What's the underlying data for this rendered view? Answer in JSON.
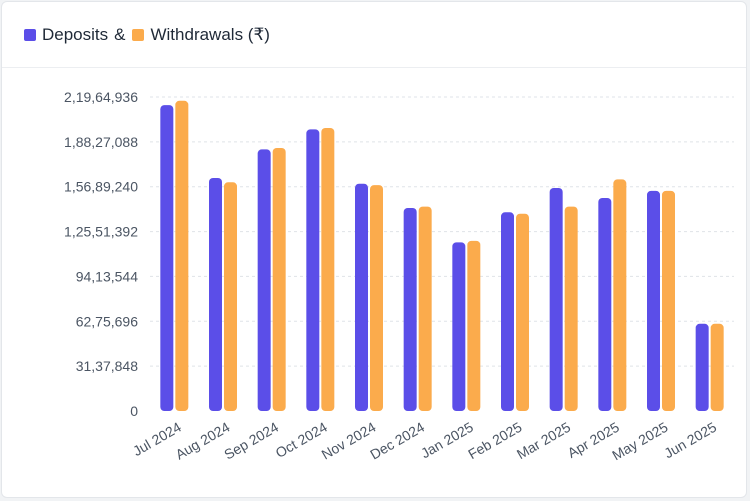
{
  "header": {
    "legend": [
      {
        "label": "Deposits",
        "color": "#5b4ee8"
      },
      {
        "label": "Withdrawals (₹)",
        "color": "#fbab4c"
      }
    ],
    "separator": "&"
  },
  "chart_data": {
    "type": "bar",
    "title": "",
    "xlabel": "",
    "ylabel": "",
    "categories": [
      "Jul 2024",
      "Aug 2024",
      "Sep 2024",
      "Oct 2024",
      "Nov 2024",
      "Dec 2024",
      "Jan 2025",
      "Feb 2025",
      "Mar 2025",
      "Apr 2025",
      "May 2025",
      "Jun 2025"
    ],
    "series": [
      {
        "name": "Deposits",
        "color": "#5b4ee8",
        "values": [
          21400000,
          16300000,
          18300000,
          19700000,
          15900000,
          14200000,
          11800000,
          13900000,
          15600000,
          14900000,
          15400000,
          6100000
        ]
      },
      {
        "name": "Withdrawals (₹)",
        "color": "#fbab4c",
        "values": [
          21700000,
          16000000,
          18400000,
          19800000,
          15800000,
          14300000,
          11900000,
          13800000,
          14300000,
          16200000,
          15400000,
          6100000
        ]
      }
    ],
    "ylim": [
      0,
      21964936
    ],
    "yticks": [
      0,
      3137848,
      6275696,
      9413544,
      12551392,
      15689240,
      18827088,
      21964936
    ],
    "ytick_labels": [
      "0",
      "31,37,848",
      "62,75,696",
      "94,13,544",
      "1,25,51,392",
      "1,56,89,240",
      "1,88,27,088",
      "2,19,64,936"
    ],
    "grid": true,
    "legend_position": "top-left"
  }
}
